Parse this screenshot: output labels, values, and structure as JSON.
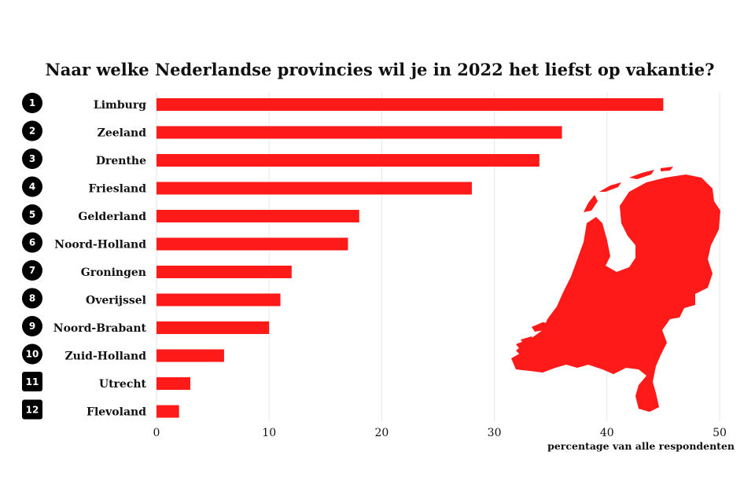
{
  "chart_data": {
    "type": "bar",
    "orientation": "horizontal",
    "title": "Naar welke Nederlandse provincies wil je in 2022 het liefst op vakantie?",
    "xlabel": "percentage van alle respondenten",
    "ylabel": "",
    "xlim": [
      0,
      50
    ],
    "xticks": [
      0,
      10,
      20,
      30,
      40,
      50
    ],
    "grid": true,
    "ranks": [
      "1",
      "2",
      "3",
      "4",
      "5",
      "6",
      "7",
      "8",
      "9",
      "10",
      "11",
      "12"
    ],
    "categories": [
      "Limburg",
      "Zeeland",
      "Drenthe",
      "Friesland",
      "Gelderland",
      "Noord-Holland",
      "Groningen",
      "Overijssel",
      "Noord-Brabant",
      "Zuid-Holland",
      "Utrecht",
      "Flevoland"
    ],
    "values": [
      45,
      36,
      34,
      28,
      18,
      17,
      12,
      11,
      10,
      6,
      3,
      2
    ],
    "bar_color": "#ff1a1a",
    "map_color": "#ff1a1a"
  }
}
